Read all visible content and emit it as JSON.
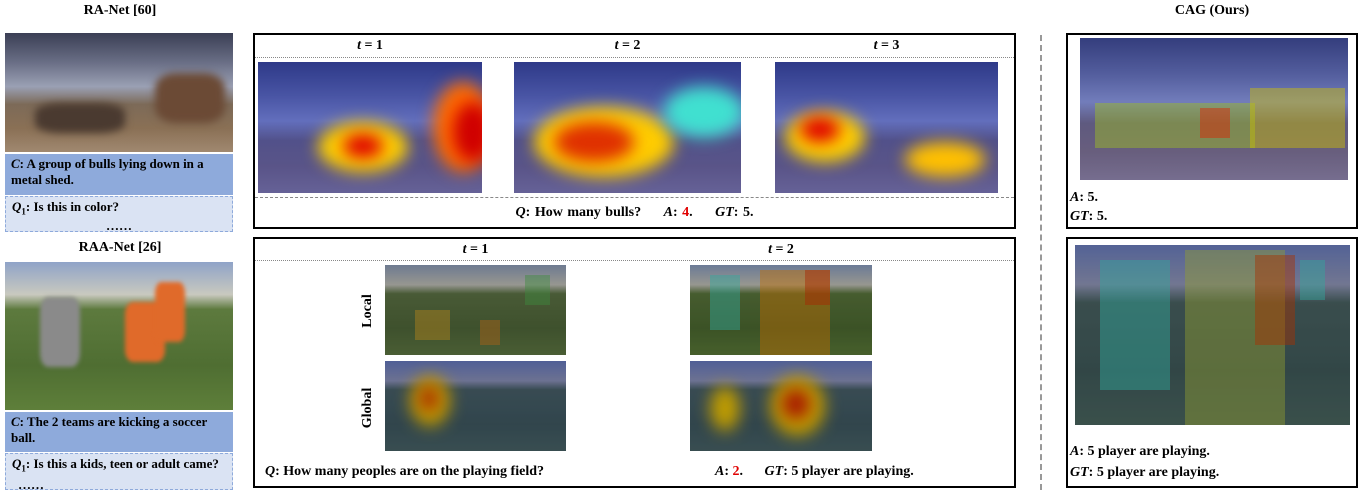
{
  "left": {
    "ra_net": {
      "title": "RA-Net [60]",
      "caption": {
        "var": "C",
        "text": ": A group of bulls  lying down in a metal shed."
      },
      "question": {
        "var": "Q",
        "sub": "1",
        "text": ": Is this in color?"
      },
      "more": "……"
    },
    "raa_net": {
      "title": "RAA-Net [26]",
      "caption": {
        "var": "C",
        "text": ": The 2 teams are kicking a soccer ball."
      },
      "question": {
        "var": "Q",
        "sub": "1",
        "text": ": Is this a kids, teen or adult came?"
      },
      "more": "……"
    }
  },
  "bulls": {
    "steps": [
      {
        "var": "t",
        "text": " = 1"
      },
      {
        "var": "t",
        "text": " = 2"
      },
      {
        "var": "t",
        "text": " = 3"
      }
    ],
    "question": {
      "var": "Q",
      "text": ": How many bulls?"
    },
    "answer": {
      "var": "A",
      "sep": ": ",
      "value": "4",
      "end": "."
    },
    "ground_truth": {
      "var": "GT",
      "text": ": 5."
    }
  },
  "soccer": {
    "steps": [
      {
        "var": "t",
        "text": " = 1"
      },
      {
        "var": "t",
        "text": " = 2"
      }
    ],
    "rows": [
      "Local",
      "Global"
    ],
    "question": {
      "var": "Q",
      "text": ": How many peoples are on the playing field?"
    },
    "answer": {
      "var": "A",
      "sep": ": ",
      "value": "2",
      "end": "."
    },
    "ground_truth": {
      "var": "GT",
      "text": ": 5 player are playing."
    }
  },
  "ours": {
    "title": "CAG (Ours)",
    "bulls": {
      "answer": {
        "var": "A",
        "text": ": 5."
      },
      "ground_truth": {
        "var": "GT",
        "text": ": 5."
      }
    },
    "soccer": {
      "answer": {
        "var": "A",
        "text": ": 5 player are playing."
      },
      "ground_truth": {
        "var": "GT",
        "text": ": 5 player are playing."
      }
    }
  }
}
